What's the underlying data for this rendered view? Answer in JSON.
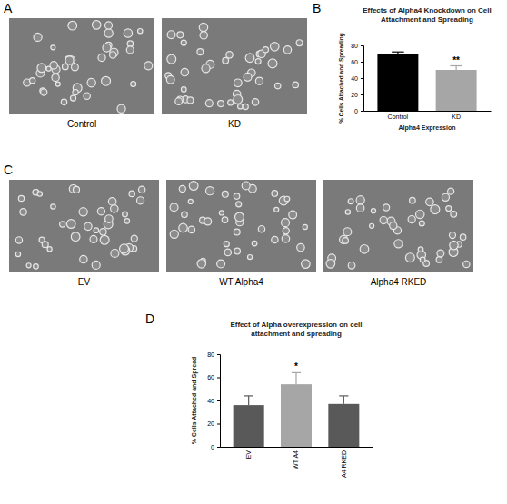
{
  "image_panels": [
    {
      "label": "A",
      "captions": [
        "Control",
        "KD"
      ]
    },
    {
      "label": "C",
      "captions": [
        "EV",
        "WT Alpha4",
        "Alpha4 RKED"
      ]
    }
  ],
  "chart_data": [
    {
      "type": "bar",
      "label": "B",
      "title": "Effects of Alpha4 Knockdown on Cell Attachment and Spreading",
      "x_label": "Alpha4 Expression",
      "y_label": "% Cells Attached and Spreading",
      "categories": [
        "Control",
        "KD"
      ],
      "values": [
        70,
        50
      ],
      "errors": [
        2,
        5
      ],
      "colors": [
        "#000000",
        "#a6a6a6"
      ],
      "annotations": [
        {
          "category": "KD",
          "text": "**"
        }
      ],
      "ylim": [
        0,
        80
      ],
      "yticks": [
        0,
        20,
        40,
        60,
        80
      ],
      "grid": false
    },
    {
      "type": "bar",
      "label": "D",
      "title": "Effect of Alpha overexpression on cell attachment and spreading",
      "y_label": "% Cells Attached and Spread",
      "categories": [
        "EV",
        "WT A4",
        "A4 RKED"
      ],
      "values": [
        36,
        54,
        37
      ],
      "errors": [
        8,
        10,
        7
      ],
      "colors": [
        "#595959",
        "#a6a6a6",
        "#595959"
      ],
      "annotations": [
        {
          "category": "WT A4",
          "text": "*"
        }
      ],
      "ylim": [
        0,
        80
      ],
      "yticks": [
        0,
        20,
        40,
        60,
        80
      ],
      "grid": false
    }
  ]
}
